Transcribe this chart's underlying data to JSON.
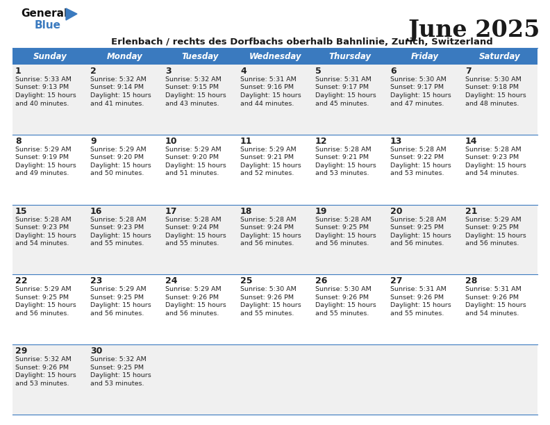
{
  "title": "June 2025",
  "subtitle": "Erlenbach / rechts des Dorfbachs oberhalb Bahnlinie, Zurich, Switzerland",
  "header_color": "#3a7abf",
  "header_text_color": "#ffffff",
  "days_of_week": [
    "Sunday",
    "Monday",
    "Tuesday",
    "Wednesday",
    "Thursday",
    "Friday",
    "Saturday"
  ],
  "bg_color": "#ffffff",
  "row_even_color": "#f0f0f0",
  "row_odd_color": "#ffffff",
  "title_color": "#1a1a1a",
  "subtitle_color": "#1a1a1a",
  "text_color": "#222222",
  "separator_color": "#3a7abf",
  "logo_black": "#111111",
  "logo_blue": "#3a7abf",
  "calendar": [
    [
      {
        "day": 1,
        "sunrise": "5:33 AM",
        "sunset": "9:13 PM",
        "daylight": "15 hours and 40 minutes."
      },
      {
        "day": 2,
        "sunrise": "5:32 AM",
        "sunset": "9:14 PM",
        "daylight": "15 hours and 41 minutes."
      },
      {
        "day": 3,
        "sunrise": "5:32 AM",
        "sunset": "9:15 PM",
        "daylight": "15 hours and 43 minutes."
      },
      {
        "day": 4,
        "sunrise": "5:31 AM",
        "sunset": "9:16 PM",
        "daylight": "15 hours and 44 minutes."
      },
      {
        "day": 5,
        "sunrise": "5:31 AM",
        "sunset": "9:17 PM",
        "daylight": "15 hours and 45 minutes."
      },
      {
        "day": 6,
        "sunrise": "5:30 AM",
        "sunset": "9:17 PM",
        "daylight": "15 hours and 47 minutes."
      },
      {
        "day": 7,
        "sunrise": "5:30 AM",
        "sunset": "9:18 PM",
        "daylight": "15 hours and 48 minutes."
      }
    ],
    [
      {
        "day": 8,
        "sunrise": "5:29 AM",
        "sunset": "9:19 PM",
        "daylight": "15 hours and 49 minutes."
      },
      {
        "day": 9,
        "sunrise": "5:29 AM",
        "sunset": "9:20 PM",
        "daylight": "15 hours and 50 minutes."
      },
      {
        "day": 10,
        "sunrise": "5:29 AM",
        "sunset": "9:20 PM",
        "daylight": "15 hours and 51 minutes."
      },
      {
        "day": 11,
        "sunrise": "5:29 AM",
        "sunset": "9:21 PM",
        "daylight": "15 hours and 52 minutes."
      },
      {
        "day": 12,
        "sunrise": "5:28 AM",
        "sunset": "9:21 PM",
        "daylight": "15 hours and 53 minutes."
      },
      {
        "day": 13,
        "sunrise": "5:28 AM",
        "sunset": "9:22 PM",
        "daylight": "15 hours and 53 minutes."
      },
      {
        "day": 14,
        "sunrise": "5:28 AM",
        "sunset": "9:23 PM",
        "daylight": "15 hours and 54 minutes."
      }
    ],
    [
      {
        "day": 15,
        "sunrise": "5:28 AM",
        "sunset": "9:23 PM",
        "daylight": "15 hours and 54 minutes."
      },
      {
        "day": 16,
        "sunrise": "5:28 AM",
        "sunset": "9:23 PM",
        "daylight": "15 hours and 55 minutes."
      },
      {
        "day": 17,
        "sunrise": "5:28 AM",
        "sunset": "9:24 PM",
        "daylight": "15 hours and 55 minutes."
      },
      {
        "day": 18,
        "sunrise": "5:28 AM",
        "sunset": "9:24 PM",
        "daylight": "15 hours and 56 minutes."
      },
      {
        "day": 19,
        "sunrise": "5:28 AM",
        "sunset": "9:25 PM",
        "daylight": "15 hours and 56 minutes."
      },
      {
        "day": 20,
        "sunrise": "5:28 AM",
        "sunset": "9:25 PM",
        "daylight": "15 hours and 56 minutes."
      },
      {
        "day": 21,
        "sunrise": "5:29 AM",
        "sunset": "9:25 PM",
        "daylight": "15 hours and 56 minutes."
      }
    ],
    [
      {
        "day": 22,
        "sunrise": "5:29 AM",
        "sunset": "9:25 PM",
        "daylight": "15 hours and 56 minutes."
      },
      {
        "day": 23,
        "sunrise": "5:29 AM",
        "sunset": "9:25 PM",
        "daylight": "15 hours and 56 minutes."
      },
      {
        "day": 24,
        "sunrise": "5:29 AM",
        "sunset": "9:26 PM",
        "daylight": "15 hours and 56 minutes."
      },
      {
        "day": 25,
        "sunrise": "5:30 AM",
        "sunset": "9:26 PM",
        "daylight": "15 hours and 55 minutes."
      },
      {
        "day": 26,
        "sunrise": "5:30 AM",
        "sunset": "9:26 PM",
        "daylight": "15 hours and 55 minutes."
      },
      {
        "day": 27,
        "sunrise": "5:31 AM",
        "sunset": "9:26 PM",
        "daylight": "15 hours and 55 minutes."
      },
      {
        "day": 28,
        "sunrise": "5:31 AM",
        "sunset": "9:26 PM",
        "daylight": "15 hours and 54 minutes."
      }
    ],
    [
      {
        "day": 29,
        "sunrise": "5:32 AM",
        "sunset": "9:26 PM",
        "daylight": "15 hours and 53 minutes."
      },
      {
        "day": 30,
        "sunrise": "5:32 AM",
        "sunset": "9:25 PM",
        "daylight": "15 hours and 53 minutes."
      },
      null,
      null,
      null,
      null,
      null
    ]
  ]
}
